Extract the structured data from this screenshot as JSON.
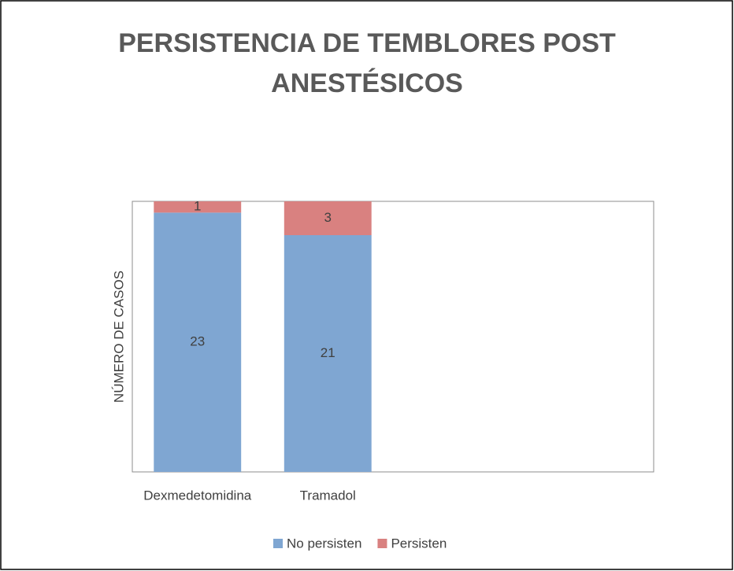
{
  "chart_data": {
    "type": "stacked_bar",
    "title": "PERSISTENCIA DE TEMBLORES POST ANESTÉSICOS",
    "y_label": "NÚMERO DE CASOS",
    "categories": [
      "Dexmedetomidina",
      "Tramadol",
      null,
      null
    ],
    "series": [
      {
        "name": "No persisten",
        "color": "#7fa6d2",
        "values": [
          23,
          21,
          null,
          null
        ]
      },
      {
        "name": "Persisten",
        "color": "#d98180",
        "values": [
          1,
          3,
          null,
          null
        ]
      }
    ],
    "ylim": [
      0,
      24
    ],
    "legend": "bottom"
  }
}
